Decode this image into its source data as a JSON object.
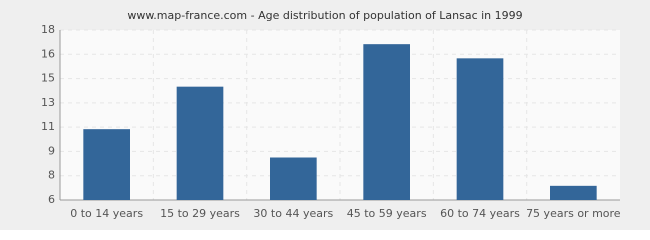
{
  "chart_data": {
    "type": "bar",
    "title": "www.map-france.com - Age distribution of population of Lansac in 1999",
    "categories": [
      "0 to 14 years",
      "15 to 29 years",
      "30 to 44 years",
      "45 to 59 years",
      "60 to 74 years",
      "75 years or more"
    ],
    "values": [
      11,
      14,
      9,
      17,
      16,
      7
    ],
    "color": "#336699",
    "ylim": [
      6,
      18
    ],
    "yticks": [
      6,
      {
        "value": 7.714,
        "label": "8"
      },
      {
        "value": 9.429,
        "label": "9"
      },
      {
        "value": 11.143,
        "label": "11"
      },
      {
        "value": 12.857,
        "label": "13"
      },
      {
        "value": 14.571,
        "label": "15"
      },
      {
        "value": 16.286,
        "label": "16"
      },
      18
    ],
    "grid": true
  }
}
